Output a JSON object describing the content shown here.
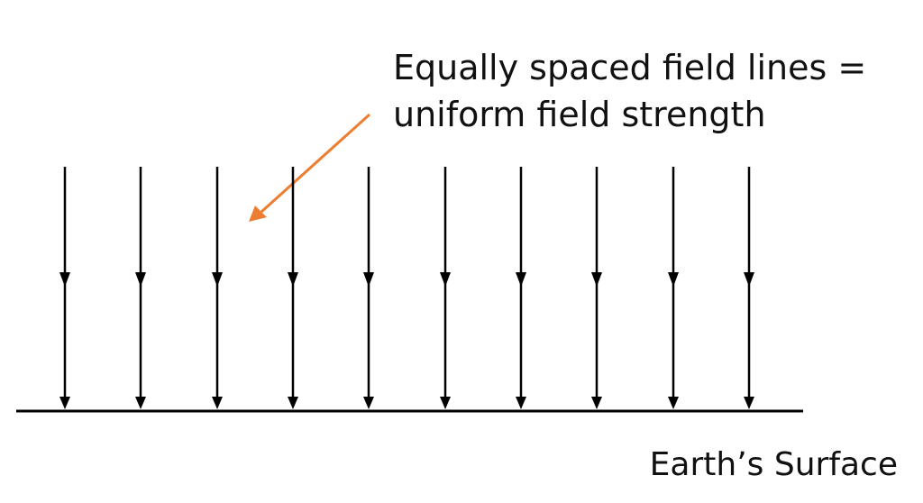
{
  "annotation": {
    "line1": "Equally spaced field lines =",
    "line2": "uniform field strength"
  },
  "surface": {
    "label": "Earth’s Surface"
  },
  "field": {
    "line_count": 10,
    "direction": "downward"
  },
  "colors": {
    "field_line": "#000000",
    "surface_line": "#000000",
    "pointer_arrow": "#ed7d31",
    "text": "#111111"
  }
}
